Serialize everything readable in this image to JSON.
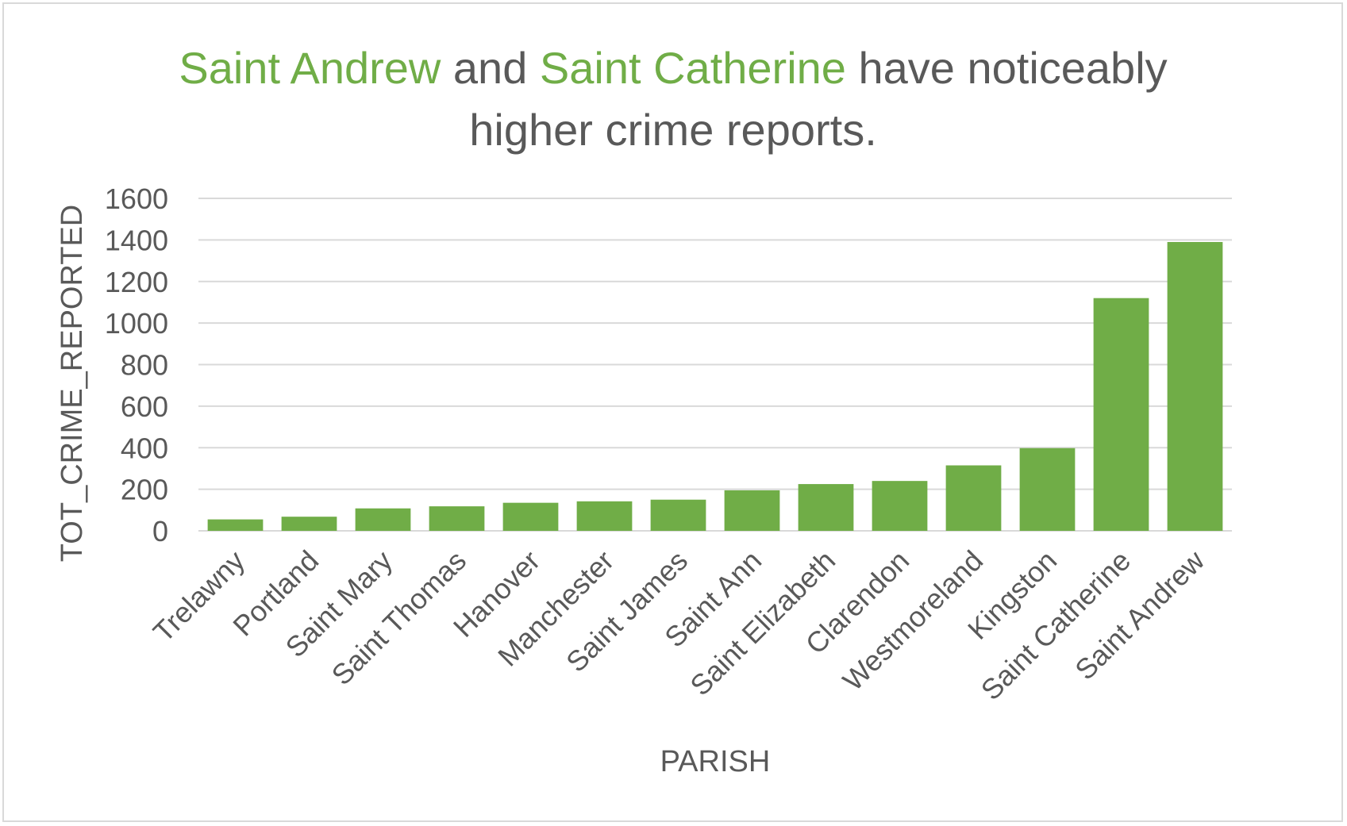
{
  "chart_data": {
    "type": "bar",
    "title": {
      "line1": [
        {
          "text": "Saint Andrew",
          "highlight": true
        },
        {
          "text": " and ",
          "highlight": false
        },
        {
          "text": "Saint Catherine",
          "highlight": true
        },
        {
          "text": " have noticeably",
          "highlight": false
        }
      ],
      "line2": "higher crime reports."
    },
    "xlabel": "PARISH",
    "ylabel": "TOT_CRIME_REPORTED",
    "ylim": [
      0,
      1600
    ],
    "yticks": [
      "0",
      "200",
      "400",
      "600",
      "800",
      "1000",
      "1200",
      "1400",
      "1600"
    ],
    "categories": [
      "Trelawny",
      "Portland",
      "Saint Mary",
      "Saint Thomas",
      "Hanover",
      "Manchester",
      "Saint James",
      "Saint Ann",
      "Saint Elizabeth",
      "Clarendon",
      "Westmoreland",
      "Kingston",
      "Saint Catherine",
      "Saint Andrew"
    ],
    "values": [
      55,
      68,
      108,
      118,
      135,
      142,
      150,
      195,
      225,
      240,
      315,
      398,
      1120,
      1390
    ],
    "grid": true,
    "legend": "none",
    "colors": {
      "bar": "#70ad47",
      "highlight_text": "#70ad47",
      "text": "#595959",
      "grid": "#d9d9d9"
    }
  }
}
